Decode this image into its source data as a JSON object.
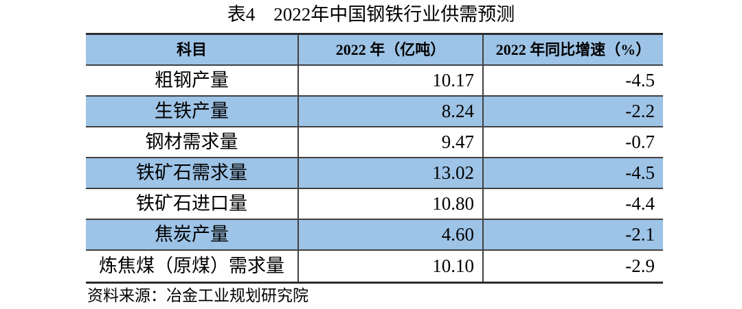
{
  "title": "表4　2022年中国钢铁行业供需预测",
  "table": {
    "headers": [
      "科目",
      "2022 年（亿吨）",
      "2022 年同比增速（%）"
    ],
    "rows": [
      {
        "label": "粗钢产量",
        "value": "10.17",
        "growth": "-4.5"
      },
      {
        "label": "生铁产量",
        "value": "8.24",
        "growth": "-2.2"
      },
      {
        "label": "钢材需求量",
        "value": "9.47",
        "growth": "-0.7"
      },
      {
        "label": "铁矿石需求量",
        "value": "13.02",
        "growth": "-4.5"
      },
      {
        "label": "铁矿石进口量",
        "value": "10.80",
        "growth": "-4.4"
      },
      {
        "label": "焦炭产量",
        "value": "4.60",
        "growth": "-2.1"
      },
      {
        "label": "炼焦煤（原煤）需求量",
        "value": "10.10",
        "growth": "-2.9"
      }
    ]
  },
  "footer": {
    "source": "资料来源：冶金工业规划研究院"
  },
  "colors": {
    "header_bg": "#9DC3E6",
    "stripe_bg": "#9DC3E6",
    "border": "#404040",
    "border_strong": "#2b2b2b",
    "text": "#000000",
    "background": "#ffffff"
  }
}
